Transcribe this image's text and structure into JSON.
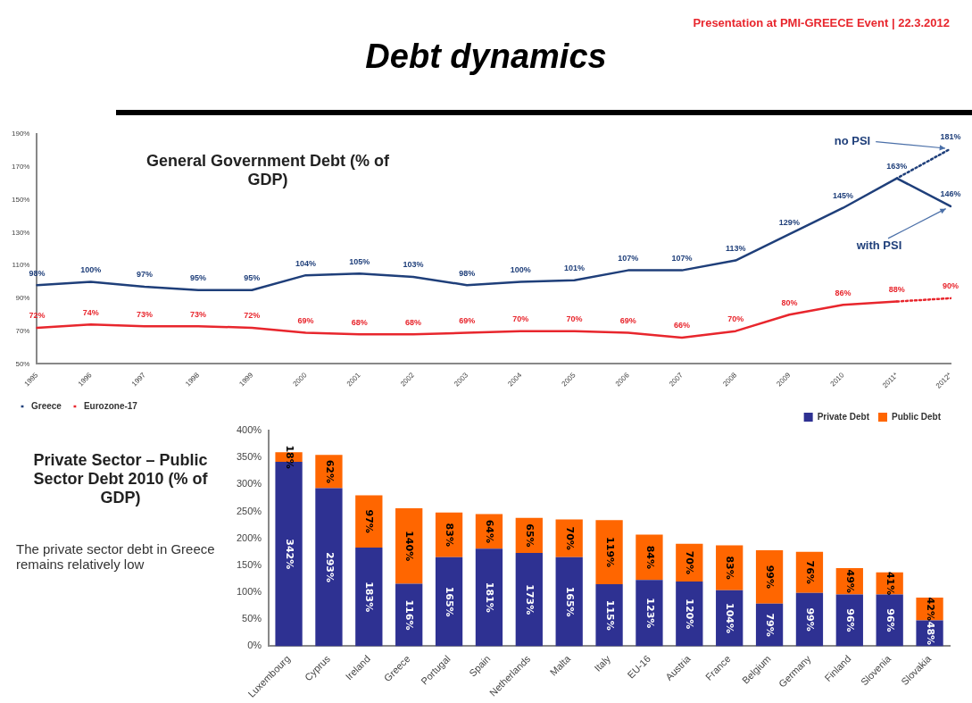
{
  "chart_data": [
    {
      "type": "line",
      "title": "General Government Debt (% of GDP)",
      "annotations": [
        "Debt dynamics",
        "Presentation at PMI-GREECE Event  |  22.3.2012",
        {
          "text": "no PSI",
          "x": "2012*",
          "y": 181
        },
        {
          "text": "with PSI",
          "x": "2012*",
          "y": 146
        }
      ],
      "categories": [
        "1995",
        "1996",
        "1997",
        "1998",
        "1999",
        "2000",
        "2001",
        "2002",
        "2003",
        "2004",
        "2005",
        "2006",
        "2007",
        "2008",
        "2009",
        "2010",
        "2011*",
        "2012*"
      ],
      "series": [
        {
          "name": "Greece",
          "color": "#1f3f7a",
          "values": [
            98,
            100,
            97,
            95,
            95,
            104,
            105,
            103,
            98,
            100,
            101,
            107,
            107,
            113,
            129,
            145,
            163,
            146
          ],
          "value_labels": [
            "98%",
            "100%",
            "97%",
            "95%",
            "95%",
            "104%",
            "105%",
            "103%",
            "98%",
            "100%",
            "101%",
            "107%",
            "107%",
            "113%",
            "129%",
            "145%",
            "163%",
            "146%"
          ]
        },
        {
          "name": "Eurozone-17",
          "color": "#e8262d",
          "values": [
            72,
            74,
            73,
            73,
            72,
            69,
            68,
            68,
            69,
            70,
            70,
            69,
            66,
            70,
            80,
            86,
            88,
            null
          ],
          "value_labels": [
            "72%",
            "74%",
            "73%",
            "73%",
            "72%",
            "69%",
            "68%",
            "68%",
            "69%",
            "70%",
            "70%",
            "69%",
            "66%",
            "70%",
            "80%",
            "86%",
            "88%",
            null
          ]
        },
        {
          "color": "#1f3f7a",
          "line_style": "dotted",
          "values": [
            null,
            null,
            null,
            null,
            null,
            null,
            null,
            null,
            null,
            null,
            null,
            null,
            null,
            null,
            null,
            null,
            163,
            181
          ],
          "value_labels": [
            null,
            null,
            null,
            null,
            null,
            null,
            null,
            null,
            null,
            null,
            null,
            null,
            null,
            null,
            null,
            null,
            null,
            "181%"
          ]
        },
        {
          "color": "#e8262d",
          "line_style": "dotted",
          "values": [
            null,
            null,
            null,
            null,
            null,
            null,
            null,
            null,
            null,
            null,
            null,
            null,
            null,
            null,
            null,
            null,
            88,
            90
          ],
          "value_labels": [
            null,
            null,
            null,
            null,
            null,
            null,
            null,
            null,
            null,
            null,
            null,
            null,
            null,
            null,
            null,
            null,
            null,
            "90%"
          ]
        }
      ],
      "ylim": [
        50,
        190
      ],
      "yticks": [
        {
          "value": 50,
          "label": "50%"
        },
        {
          "value": 70,
          "label": "70%"
        },
        {
          "value": 90,
          "label": "90%"
        },
        {
          "value": 110,
          "label": "110%"
        },
        {
          "value": 130,
          "label": "130%"
        },
        {
          "value": 150,
          "label": "150%"
        },
        {
          "value": 170,
          "label": "170%"
        },
        {
          "value": 190,
          "label": "190%"
        }
      ],
      "legend": "bottom left",
      "marker": "none",
      "line_style": "solid"
    },
    {
      "type": "bar",
      "title": "Private Sector – Public Sector Debt 2010 (% of GDP)",
      "annotations": [
        "The private sector debt in Greece remains relatively low"
      ],
      "categories": [
        "Luxembourg",
        "Cyprus",
        "Ireland",
        "Greece",
        "Portugal",
        "Spain",
        "Netherlands",
        "Malta",
        "Italy",
        "EU-16",
        "Austria",
        "France",
        "Belgium",
        "Germany",
        "Finland",
        "Slovenia",
        "Slovakia"
      ],
      "stacked": true,
      "series": [
        {
          "name": "Private Debt",
          "color": "#2e3192",
          "values": [
            342,
            293,
            183,
            116,
            165,
            181,
            173,
            165,
            115,
            123,
            120,
            104,
            79,
            99,
            96,
            96,
            48
          ],
          "value_labels": [
            "342%",
            "293%",
            "183%",
            "116%",
            "165%",
            "181%",
            "173%",
            "165%",
            "115%",
            "123%",
            "120%",
            "104%",
            "79%",
            "99%",
            "96%",
            "96%",
            "48%"
          ]
        },
        {
          "name": "Public Debt",
          "color": "#ff6600",
          "values": [
            18,
            62,
            97,
            140,
            83,
            64,
            65,
            70,
            119,
            84,
            70,
            83,
            99,
            76,
            49,
            41,
            42
          ],
          "value_labels": [
            "18%",
            "62%",
            "97%",
            "140%",
            "83%",
            "64%",
            "65%",
            "70%",
            "119%",
            "84%",
            "70%",
            "83%",
            "99%",
            "76%",
            "49%",
            "41%",
            "42%"
          ]
        }
      ],
      "ylim": [
        0,
        400
      ],
      "yticks": [
        {
          "value": 0,
          "label": "0%"
        },
        {
          "value": 50,
          "label": "50%"
        },
        {
          "value": 100,
          "label": "100%"
        },
        {
          "value": 150,
          "label": "150%"
        },
        {
          "value": 200,
          "label": "200%"
        },
        {
          "value": 250,
          "label": "250%"
        },
        {
          "value": 300,
          "label": "300%"
        },
        {
          "value": 350,
          "label": "350%"
        },
        {
          "value": 400,
          "label": "400%"
        }
      ],
      "legend": "top right"
    }
  ]
}
